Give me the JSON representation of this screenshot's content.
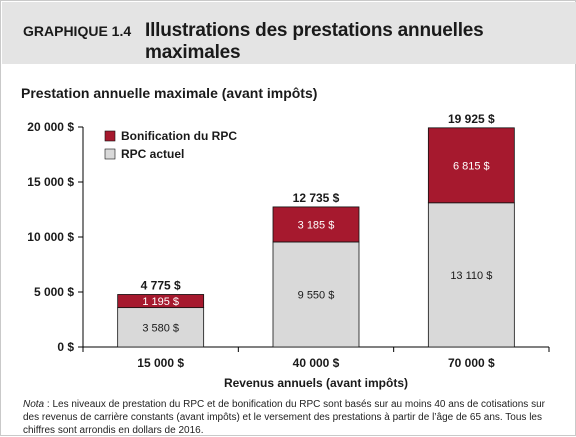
{
  "header": {
    "figure_label": "GRAPHIQUE 1.4",
    "title": "Illustrations des prestations annuelles maximales"
  },
  "chart_data": {
    "type": "bar",
    "stacked": true,
    "title": "Prestation annuelle maximale (avant impôts)",
    "xlabel": "Revenus annuels (avant impôts)",
    "ylabel": "",
    "ylim": [
      0,
      20000
    ],
    "yticks": [
      0,
      5000,
      10000,
      15000,
      20000
    ],
    "ytick_labels": [
      "0 $",
      "5 000 $",
      "10 000 $",
      "15 000 $",
      "20 000 $"
    ],
    "categories": [
      "15 000 $",
      "40 000 $",
      "70 000 $"
    ],
    "series": [
      {
        "name": "RPC actuel",
        "color": "#d9d9d9",
        "values": [
          3580,
          9550,
          13110
        ],
        "labels": [
          "3 580 $",
          "9 550 $",
          "13 110 $"
        ]
      },
      {
        "name": "Bonification du RPC",
        "color": "#a6192e",
        "values": [
          1195,
          3185,
          6815
        ],
        "labels": [
          "1 195 $",
          "3 185 $",
          "6 815 $"
        ]
      }
    ],
    "totals": [
      4775,
      12735,
      19925
    ],
    "total_labels": [
      "4 775 $",
      "12 735 $",
      "19 925 $"
    ],
    "legend": {
      "position": "top-left",
      "entries": [
        "Bonification du RPC",
        "RPC actuel"
      ]
    },
    "grid": false
  },
  "note": {
    "label": "Nota",
    "text": " : Les niveaux de prestation du RPC et de bonification du RPC sont basés sur au moins 40 ans de cotisations sur des revenus de carrière constants (avant impôts) et le versement des prestations à partir de l’âge de 65 ans. Tous les chiffres sont arrondis en dollars de 2016."
  }
}
